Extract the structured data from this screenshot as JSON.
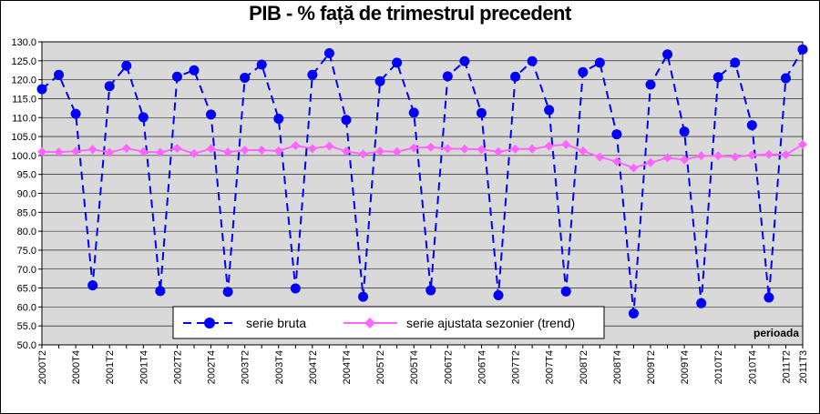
{
  "chart_data": {
    "type": "line",
    "title": "PIB - % față de trimestrul precedent",
    "xlabel": "perioada",
    "ylabel": "",
    "ylim": [
      50,
      130
    ],
    "y_ticks": [
      "50.0",
      "55.0",
      "60.0",
      "65.0",
      "70.0",
      "75.0",
      "80.0",
      "85.0",
      "90.0",
      "95.0",
      "100.0",
      "105.0",
      "110.0",
      "115.0",
      "120.0",
      "125.0",
      "130.0"
    ],
    "grid": "horizontal",
    "legend_position": "bottom-center",
    "x": [
      "2000T2",
      "2000T3",
      "2000T4",
      "2001T1",
      "2001T2",
      "2001T3",
      "2001T4",
      "2002T1",
      "2002T2",
      "2002T3",
      "2002T4",
      "2003T1",
      "2003T2",
      "2003T3",
      "2003T4",
      "2004T1",
      "2004T2",
      "2004T3",
      "2004T4",
      "2005T1",
      "2005T2",
      "2005T3",
      "2005T4",
      "2006T1",
      "2006T2",
      "2006T3",
      "2006T4",
      "2007T1",
      "2007T2",
      "2007T3",
      "2007T4",
      "2008T1",
      "2008T2",
      "2008T3",
      "2008T4",
      "2009T1",
      "2009T2",
      "2009T3",
      "2009T4",
      "2010T1",
      "2010T2",
      "2010T3",
      "2010T4",
      "2011T1",
      "2011T2",
      "2011T3"
    ],
    "x_tick_labels": [
      "2000T2",
      "",
      "2000T4",
      "",
      "2001T2",
      "",
      "2001T4",
      "",
      "2002T2",
      "",
      "2002T4",
      "",
      "2003T2",
      "",
      "2003T4",
      "",
      "2004T2",
      "",
      "2004T4",
      "",
      "2005T2",
      "",
      "2005T4",
      "",
      "2006T2",
      "",
      "2006T4",
      "",
      "2007T2",
      "",
      "2007T4",
      "",
      "2008T2",
      "",
      "2008T4",
      "",
      "2009T2",
      "",
      "2009T4",
      "",
      "2010T2",
      "",
      "2010T4",
      "",
      "2011T2",
      "2011T3"
    ],
    "series": [
      {
        "name": "serie bruta",
        "color": "#0000ff",
        "style": "dashed",
        "marker": "circle",
        "values": [
          117.5,
          121.3,
          111.0,
          65.7,
          118.3,
          123.7,
          110.1,
          64.2,
          120.8,
          122.5,
          110.8,
          64.0,
          120.5,
          124.0,
          109.7,
          64.9,
          121.3,
          127.0,
          109.4,
          62.7,
          119.6,
          124.5,
          111.3,
          64.4,
          120.9,
          124.9,
          111.2,
          63.1,
          120.8,
          124.9,
          112.0,
          64.1,
          122.0,
          124.5,
          105.6,
          58.3,
          118.7,
          126.7,
          106.3,
          61.0,
          120.7,
          124.5,
          108.0,
          62.5,
          120.4,
          128.0
        ]
      },
      {
        "name": "serie ajustata sezonier (trend)",
        "color": "#ff66ff",
        "style": "solid",
        "marker": "diamond",
        "values": [
          101.0,
          100.9,
          101.1,
          101.6,
          100.8,
          101.9,
          101.0,
          100.8,
          101.9,
          100.5,
          101.8,
          100.9,
          101.4,
          101.4,
          101.2,
          102.6,
          101.8,
          102.5,
          101.1,
          100.4,
          101.1,
          101.0,
          102.0,
          102.2,
          101.8,
          101.7,
          101.6,
          101.0,
          101.7,
          101.7,
          102.5,
          102.9,
          101.2,
          99.6,
          98.4,
          96.7,
          98.1,
          99.4,
          98.9,
          99.9,
          99.9,
          99.6,
          100.1,
          100.3,
          100.2,
          102.9
        ]
      }
    ]
  }
}
